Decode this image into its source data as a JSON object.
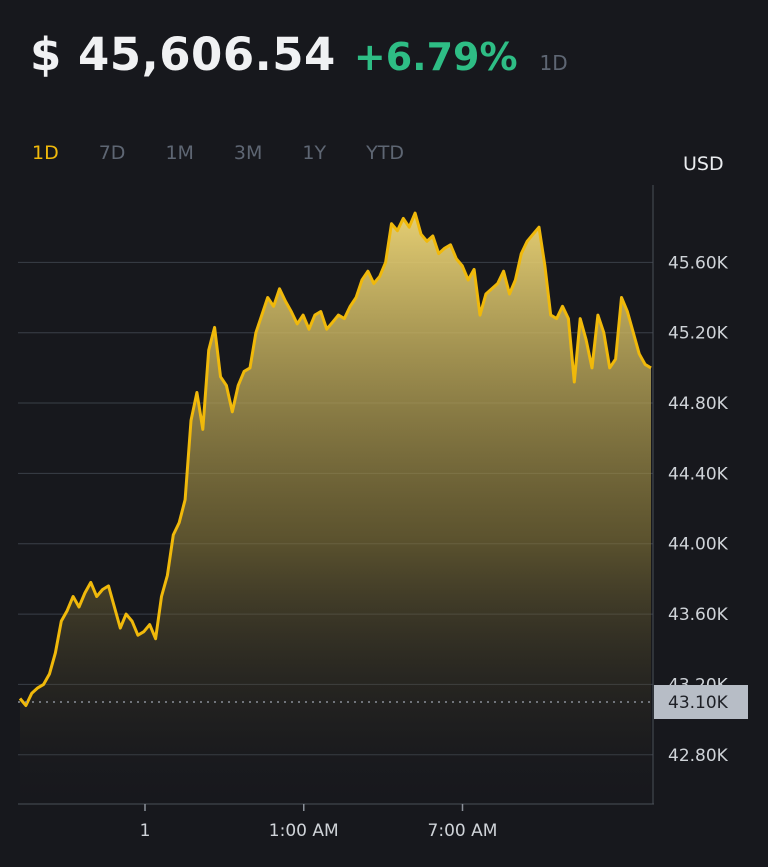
{
  "header": {
    "price": "$ 45,606.54",
    "change": "+6.79%",
    "period": "1D",
    "change_color": "#2ebd85"
  },
  "tabs": [
    {
      "label": "1D",
      "active": true
    },
    {
      "label": "7D",
      "active": false
    },
    {
      "label": "1M",
      "active": false
    },
    {
      "label": "3M",
      "active": false
    },
    {
      "label": "1Y",
      "active": false
    },
    {
      "label": "YTD",
      "active": false
    }
  ],
  "unit": "USD",
  "colors": {
    "line": "#f0b90b",
    "grid": "#3a3f48",
    "badge": "#b7bdc6"
  },
  "chart_data": {
    "type": "area",
    "y_ticks": [
      {
        "value": 45600,
        "label": "45.60K"
      },
      {
        "value": 45200,
        "label": "45.20K"
      },
      {
        "value": 44800,
        "label": "44.80K"
      },
      {
        "value": 44400,
        "label": "44.40K"
      },
      {
        "value": 44000,
        "label": "44.00K"
      },
      {
        "value": 43600,
        "label": "43.60K"
      },
      {
        "value": 43200,
        "label": "43.20K"
      },
      {
        "value": 42800,
        "label": "42.80K"
      }
    ],
    "x_ticks": [
      {
        "x": 0.2,
        "label": "1"
      },
      {
        "x": 0.45,
        "label": "1:00 AM"
      },
      {
        "x": 0.7,
        "label": "7:00 AM"
      }
    ],
    "reference": {
      "value": 43100,
      "label": "43.10K"
    },
    "ylim": [
      42520,
      46040
    ],
    "xlim": [
      0,
      1
    ],
    "grid": true,
    "values": [
      43120,
      43080,
      43150,
      43180,
      43200,
      43260,
      43380,
      43560,
      43620,
      43700,
      43640,
      43720,
      43780,
      43700,
      43740,
      43760,
      43640,
      43520,
      43600,
      43560,
      43480,
      43500,
      43540,
      43460,
      43700,
      43820,
      44050,
      44120,
      44250,
      44700,
      44860,
      44650,
      45100,
      45230,
      44950,
      44900,
      44750,
      44900,
      44980,
      45000,
      45200,
      45300,
      45400,
      45350,
      45450,
      45380,
      45320,
      45250,
      45300,
      45220,
      45300,
      45320,
      45220,
      45260,
      45300,
      45280,
      45350,
      45400,
      45500,
      45550,
      45480,
      45520,
      45600,
      45820,
      45780,
      45850,
      45800,
      45880,
      45760,
      45720,
      45750,
      45650,
      45680,
      45700,
      45620,
      45580,
      45500,
      45560,
      45300,
      45420,
      45450,
      45480,
      45550,
      45420,
      45500,
      45650,
      45720,
      45760,
      45800,
      45580,
      45300,
      45280,
      45350,
      45280,
      44920,
      45280,
      45160,
      45000,
      45300,
      45200,
      45000,
      45050,
      45400,
      45320,
      45200,
      45080,
      45020,
      45000
    ]
  }
}
